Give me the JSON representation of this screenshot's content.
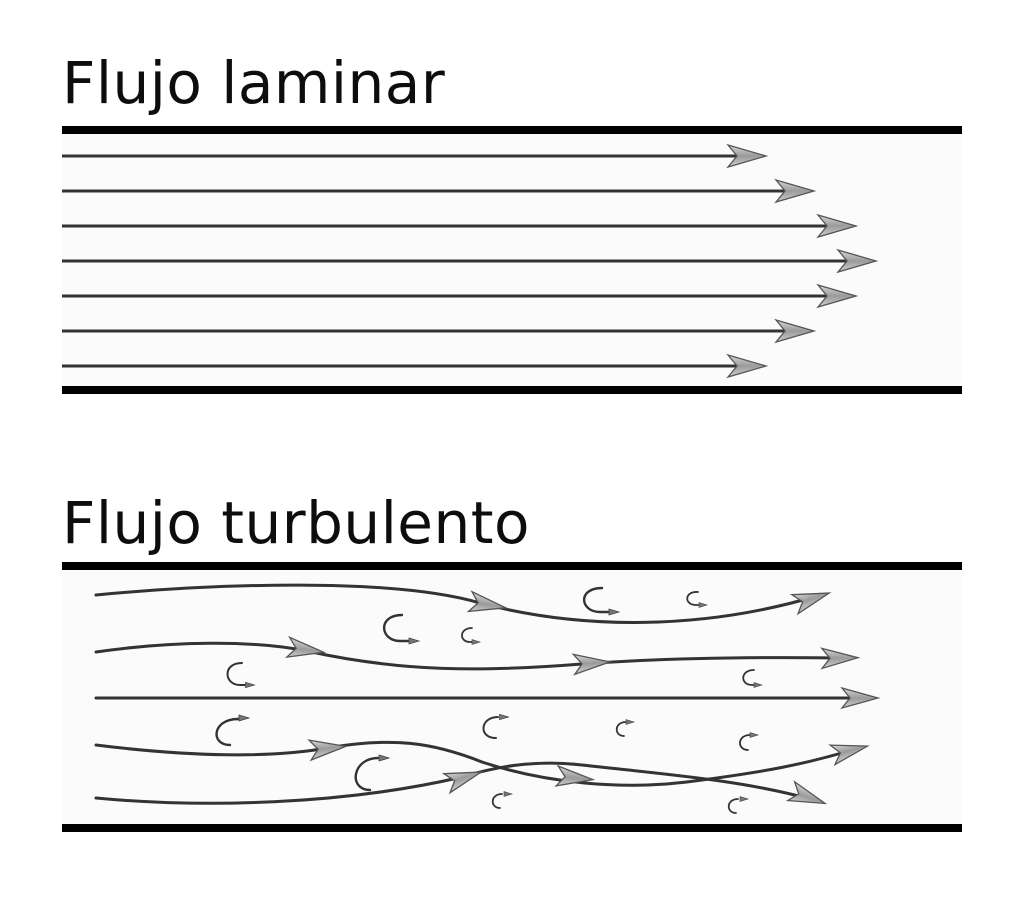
{
  "laminar": {
    "title": "Flujo laminar"
  },
  "turbulent": {
    "title": "Flujo turbulento"
  },
  "colors": {
    "wall": "#000000",
    "streamline": "#333333",
    "arrowhead": "#a8a8a8",
    "channel_fill": "#fbfbfb"
  },
  "icons": {
    "flow_arrow": "arrowhead-icon",
    "eddy": "curl-arrow-icon"
  }
}
